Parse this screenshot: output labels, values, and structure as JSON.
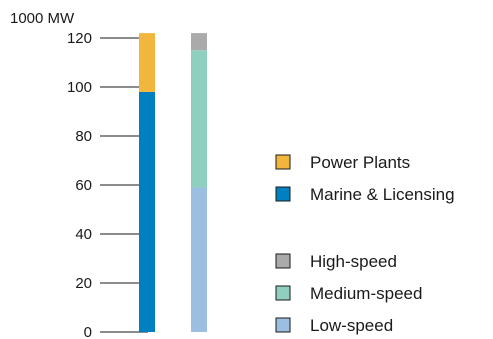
{
  "chart_data": {
    "type": "bar",
    "stacked": true,
    "y_unit": "1000 MW",
    "ylim": [
      0,
      120
    ],
    "yticks": [
      0,
      20,
      40,
      60,
      80,
      100,
      120
    ],
    "grid": false,
    "legend_position": "right",
    "bars": [
      {
        "segments": [
          {
            "legend": "Marine & Licensing",
            "value": 98,
            "color": "#0080c0"
          },
          {
            "legend": "Power Plants",
            "value": 24,
            "color": "#f2b63d"
          }
        ]
      },
      {
        "segments": [
          {
            "legend": "Low-speed",
            "value": 59,
            "color": "#9cbee0"
          },
          {
            "legend": "Medium-speed",
            "value": 56,
            "color": "#8fcfc0"
          },
          {
            "legend": "High-speed",
            "value": 7,
            "color": "#aaaaaa"
          }
        ]
      }
    ],
    "legend_groups": [
      [
        {
          "label": "Power Plants",
          "color": "#f2b63d"
        },
        {
          "label": "Marine & Licensing",
          "color": "#0080c0"
        }
      ],
      [
        {
          "label": "High-speed",
          "color": "#aaaaaa"
        },
        {
          "label": "Medium-speed",
          "color": "#8fcfc0"
        },
        {
          "label": "Low-speed",
          "color": "#9cbee0"
        }
      ]
    ]
  }
}
